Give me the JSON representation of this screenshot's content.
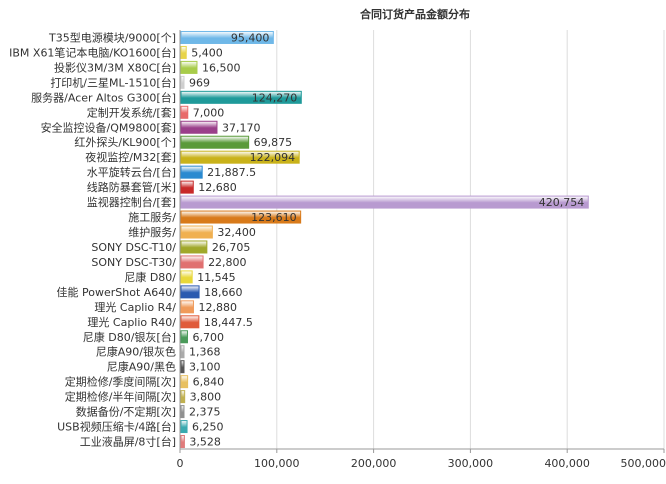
{
  "chart_data": {
    "type": "bar",
    "orientation": "horizontal",
    "title": "合同订货产品金额分布",
    "xlabel": "",
    "ylabel": "",
    "xlim": [
      0,
      500000
    ],
    "x_ticks": [
      0,
      100000,
      200000,
      300000,
      400000,
      500000
    ],
    "x_tick_labels": [
      "0",
      "100,000",
      "200,000",
      "300,000",
      "400,000",
      "500,000"
    ],
    "grid": "vertical",
    "legend": "none",
    "categories": [
      "T35型电源模块/9000[个]",
      "IBM X61笔记本电脑/KO1600[台]",
      "投影仪3M/3M X80C[台]",
      "打印机/三星ML-1510[台]",
      "服务器/Acer Altos G300[台]",
      "定制开发系统/[套]",
      "安全监控设备/QM9800[套]",
      "红外探头/KL900[个]",
      "夜视监控/M32[套]",
      "水平旋转云台/[台]",
      "线路防暴套管/[米]",
      "监视器控制台/[套]",
      "施工服务/",
      "维护服务/",
      "SONY DSC-T10/",
      "SONY DSC-T30/",
      "尼康 D80/",
      "佳能 PowerShot A640/",
      "理光 Caplio R4/",
      "理光 Caplio R40/",
      "尼康 D80/银灰[台]",
      "尼康A90/银灰色",
      "尼康A90/黑色",
      "定期检修/季度间隔[次]",
      "定期检修/半年间隔[次]",
      "数据备份/不定期[次]",
      "USB视频压缩卡/4路[台]",
      "工业液晶屏/8寸[台]"
    ],
    "values": [
      95400,
      5400,
      16500,
      969,
      124270,
      7000,
      37170,
      69875,
      122094,
      21887.5,
      12680,
      420754,
      123610,
      32400,
      26705,
      22800,
      11545,
      18660,
      12880,
      18447.5,
      6700,
      1368,
      3100,
      6840,
      3800,
      2375,
      6250,
      3528
    ],
    "value_labels": [
      "95,400",
      "5,400",
      "16,500",
      "969",
      "124,270",
      "7,000",
      "37,170",
      "69,875",
      "122,094",
      "21,887.5",
      "12,680",
      "420,754",
      "123,610",
      "32,400",
      "26,705",
      "22,800",
      "11,545",
      "18,660",
      "12,880",
      "18,447.5",
      "6,700",
      "1,368",
      "3,100",
      "6,840",
      "3,800",
      "2,375",
      "6,250",
      "3,528"
    ],
    "colors": [
      "#6fb8e8",
      "#e8d44a",
      "#a8cc4a",
      "#cfcfcf",
      "#1f9a9a",
      "#e86a6a",
      "#9a3f8a",
      "#5a9a3a",
      "#c9b21a",
      "#2a8ad0",
      "#c82a2a",
      "#b89ad0",
      "#d87a1a",
      "#f0b050",
      "#a0a82a",
      "#e07070",
      "#e8d83a",
      "#2a5ab0",
      "#f09a5a",
      "#e05a3a",
      "#4a9a5a",
      "#aaaaaa",
      "#555555",
      "#e8c060",
      "#c0b050",
      "#909090",
      "#3aaab0",
      "#e07a7a"
    ]
  }
}
